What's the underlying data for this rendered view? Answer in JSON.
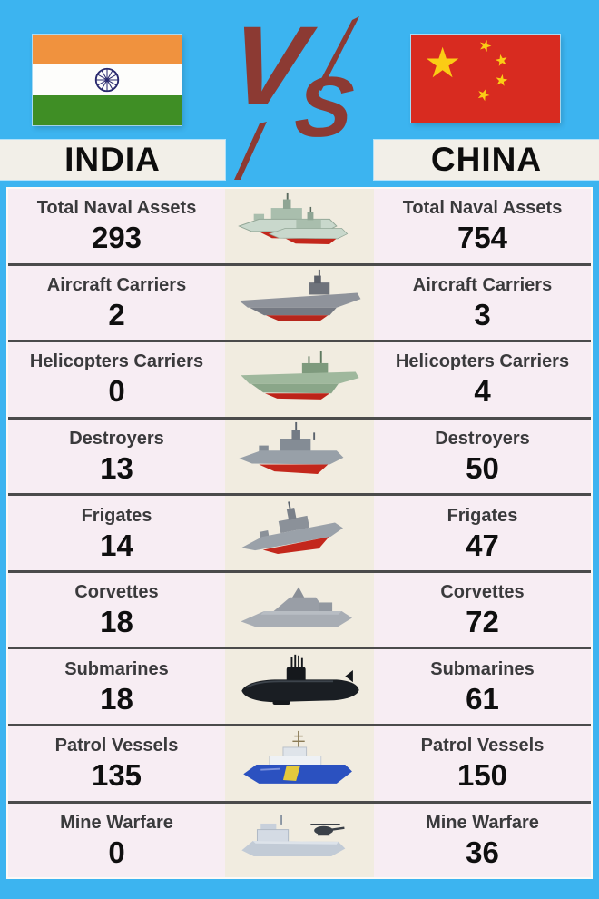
{
  "header": {
    "versus": "VS",
    "left": {
      "country": "INDIA"
    },
    "right": {
      "country": "CHINA"
    }
  },
  "rows": [
    {
      "label": "Total Naval Assets",
      "india": "293",
      "china": "754",
      "icon": "twin-warships-icon"
    },
    {
      "label": "Aircraft Carriers",
      "india": "2",
      "china": "3",
      "icon": "aircraft-carrier-icon"
    },
    {
      "label": "Helicopters Carriers",
      "india": "0",
      "china": "4",
      "icon": "helicopter-carrier-icon"
    },
    {
      "label": "Destroyers",
      "india": "13",
      "china": "50",
      "icon": "destroyer-icon"
    },
    {
      "label": "Frigates",
      "india": "14",
      "china": "47",
      "icon": "frigate-icon"
    },
    {
      "label": "Corvettes",
      "india": "18",
      "china": "72",
      "icon": "corvette-icon"
    },
    {
      "label": "Submarines",
      "india": "18",
      "china": "61",
      "icon": "submarine-icon"
    },
    {
      "label": "Patrol Vessels",
      "india": "135",
      "china": "150",
      "icon": "patrol-vessel-icon"
    },
    {
      "label": "Mine Warfare",
      "india": "0",
      "china": "36",
      "icon": "mine-warfare-icon"
    }
  ],
  "chart_data": {
    "type": "table",
    "title": "INDIA vs CHINA naval fleet comparison",
    "categories": [
      "Total Naval Assets",
      "Aircraft Carriers",
      "Helicopters Carriers",
      "Destroyers",
      "Frigates",
      "Corvettes",
      "Submarines",
      "Patrol Vessels",
      "Mine Warfare"
    ],
    "series": [
      {
        "name": "INDIA",
        "values": [
          293,
          2,
          0,
          13,
          14,
          18,
          18,
          135,
          0
        ]
      },
      {
        "name": "CHINA",
        "values": [
          754,
          3,
          4,
          50,
          47,
          72,
          61,
          150,
          36
        ]
      }
    ],
    "legend_position": "top",
    "grid": true
  },
  "colors": {
    "background": "#3cb4f0",
    "row_bg": "#f7edf3",
    "center_bg": "#f1ece0",
    "divider": "#4b4b4b",
    "header_bar": "#f2efe8",
    "vs": "#8c3a33",
    "label_text": "#3a3a3c",
    "value_text": "#0f0f0f",
    "india_saffron": "#f0923e",
    "india_green": "#3f8e25",
    "chakra_navy": "#2a2a6e",
    "china_red": "#d82b20",
    "star_yellow": "#fbcc15"
  }
}
